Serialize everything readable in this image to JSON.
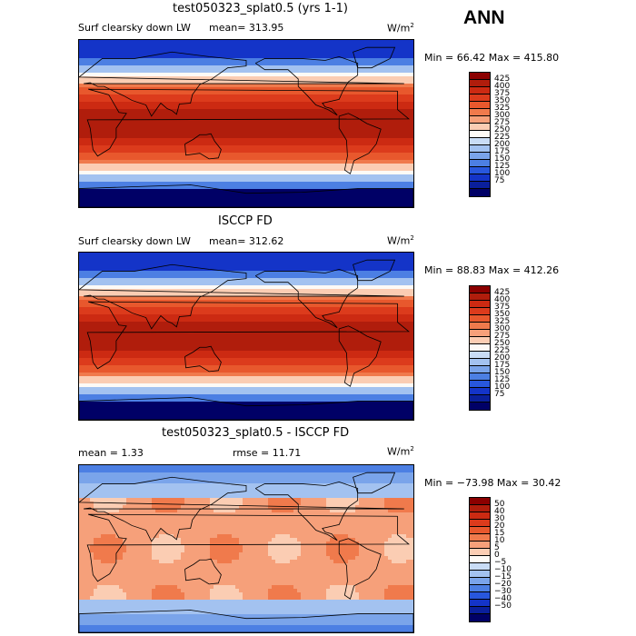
{
  "season": "ANN",
  "panels": [
    {
      "title": "test050323_splat0.5 (yrs 1-1)",
      "variable": "Surf clearsky down LW",
      "stat_left": "mean= 313.95",
      "stat_right": "",
      "units": "W/m",
      "units_sup": "2",
      "minmax": "Min =  66.42 Max = 415.80",
      "kind": "field"
    },
    {
      "title": "ISCCP FD",
      "variable": "Surf clearsky down LW",
      "stat_left": "mean= 312.62",
      "stat_right": "",
      "units": "W/m",
      "units_sup": "2",
      "minmax": "Min =  88.83 Max = 412.26",
      "kind": "field"
    },
    {
      "title": "test050323_splat0.5 - ISCCP FD",
      "variable": "",
      "stat_left": "mean =    1.33",
      "stat_right": "rmse =   11.71",
      "units": "W/m",
      "units_sup": "2",
      "minmax": "Min = −73.98 Max =  30.42",
      "kind": "diff"
    }
  ],
  "colorbars": {
    "field": {
      "labels": [
        "425",
        "400",
        "375",
        "350",
        "325",
        "300",
        "275",
        "250",
        "225",
        "200",
        "175",
        "150",
        "125",
        "100",
        "75"
      ],
      "colors": [
        "#8b0000",
        "#b01d0c",
        "#cc2a12",
        "#dc3b1c",
        "#e8582d",
        "#f07a4c",
        "#f6a07a",
        "#fbcdb3",
        "#fdfaf6",
        "#c9dcf5",
        "#a3c2f0",
        "#7aa4ea",
        "#4c7fe3",
        "#2857dd",
        "#1434c8",
        "#0a1f9b",
        "#000066"
      ]
    },
    "diff": {
      "labels": [
        "50",
        "40",
        "30",
        "20",
        "15",
        "10",
        "5",
        "0",
        "−5",
        "−10",
        "−15",
        "−20",
        "−30",
        "−40",
        "−50"
      ],
      "colors": [
        "#8b0000",
        "#b01d0c",
        "#cc2a12",
        "#dc3b1c",
        "#e8582d",
        "#f07a4c",
        "#f6a07a",
        "#fbcdb3",
        "#fdfaf6",
        "#c9dcf5",
        "#a3c2f0",
        "#7aa4ea",
        "#4c7fe3",
        "#2857dd",
        "#1434c8",
        "#0a1f9b",
        "#000066"
      ]
    }
  },
  "chart_data": [
    {
      "type": "heatmap",
      "title": "test050323_splat0.5 (yrs 1-1)",
      "subtitle": "Surf clearsky down LW",
      "mean": 313.95,
      "min": 66.42,
      "max": 415.8,
      "units": "W/m2",
      "color_levels": [
        75,
        100,
        125,
        150,
        175,
        200,
        225,
        250,
        275,
        300,
        325,
        350,
        375,
        400,
        425
      ]
    },
    {
      "type": "heatmap",
      "title": "ISCCP FD",
      "subtitle": "Surf clearsky down LW",
      "mean": 312.62,
      "min": 88.83,
      "max": 412.26,
      "units": "W/m2",
      "color_levels": [
        75,
        100,
        125,
        150,
        175,
        200,
        225,
        250,
        275,
        300,
        325,
        350,
        375,
        400,
        425
      ]
    },
    {
      "type": "heatmap",
      "title": "test050323_splat0.5 - ISCCP FD",
      "mean": 1.33,
      "rmse": 11.71,
      "min": -73.98,
      "max": 30.42,
      "units": "W/m2",
      "color_levels": [
        -50,
        -40,
        -30,
        -20,
        -15,
        -10,
        -5,
        0,
        5,
        10,
        15,
        20,
        30,
        40,
        50
      ]
    }
  ]
}
